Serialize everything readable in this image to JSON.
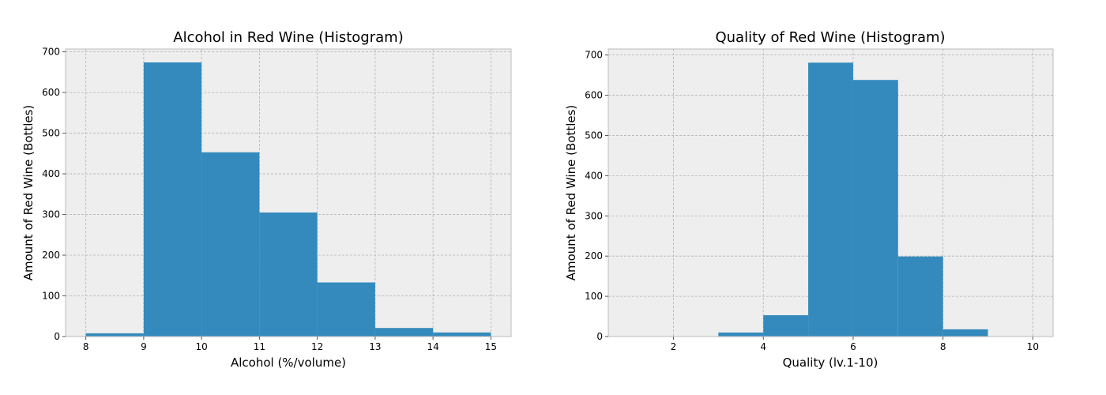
{
  "chart_data": [
    {
      "type": "bar",
      "title": "Alcohol in Red Wine (Histogram)",
      "xlabel": "Alcohol (%/volume)",
      "ylabel": "Amount of Red Wine (Bottles)",
      "bins": [
        [
          8,
          9
        ],
        [
          9,
          10
        ],
        [
          10,
          11
        ],
        [
          11,
          12
        ],
        [
          12,
          13
        ],
        [
          13,
          14
        ],
        [
          14,
          15
        ]
      ],
      "values": [
        8,
        674,
        453,
        305,
        133,
        21,
        10
      ],
      "xlim": [
        7.65,
        15.35
      ],
      "ylim": [
        0,
        707
      ],
      "xticks": [
        8,
        9,
        10,
        11,
        12,
        13,
        14,
        15
      ],
      "yticks": [
        0,
        100,
        200,
        300,
        400,
        500,
        600,
        700
      ],
      "grid": true,
      "bar_color": "#348abd"
    },
    {
      "type": "bar",
      "title": "Quality of Red Wine (Histogram)",
      "xlabel": "Quality (lv.1-10)",
      "ylabel": "Amount of Red Wine (Bottles)",
      "bins": [
        [
          1,
          2
        ],
        [
          2,
          3
        ],
        [
          3,
          4
        ],
        [
          4,
          5
        ],
        [
          5,
          6
        ],
        [
          6,
          7
        ],
        [
          7,
          8
        ],
        [
          8,
          9
        ],
        [
          9,
          10
        ]
      ],
      "values": [
        0,
        0,
        10,
        53,
        681,
        638,
        199,
        18,
        0
      ],
      "xlim": [
        0.55,
        10.45
      ],
      "ylim": [
        0,
        715
      ],
      "xticks": [
        2,
        4,
        6,
        8,
        10
      ],
      "yticks": [
        0,
        100,
        200,
        300,
        400,
        500,
        600,
        700
      ],
      "grid": true,
      "bar_color": "#348abd"
    }
  ],
  "style": {
    "plot_background": "#eeeeee",
    "grid_color": "#b2b2b2",
    "frame_color": "#bcbcbc"
  }
}
